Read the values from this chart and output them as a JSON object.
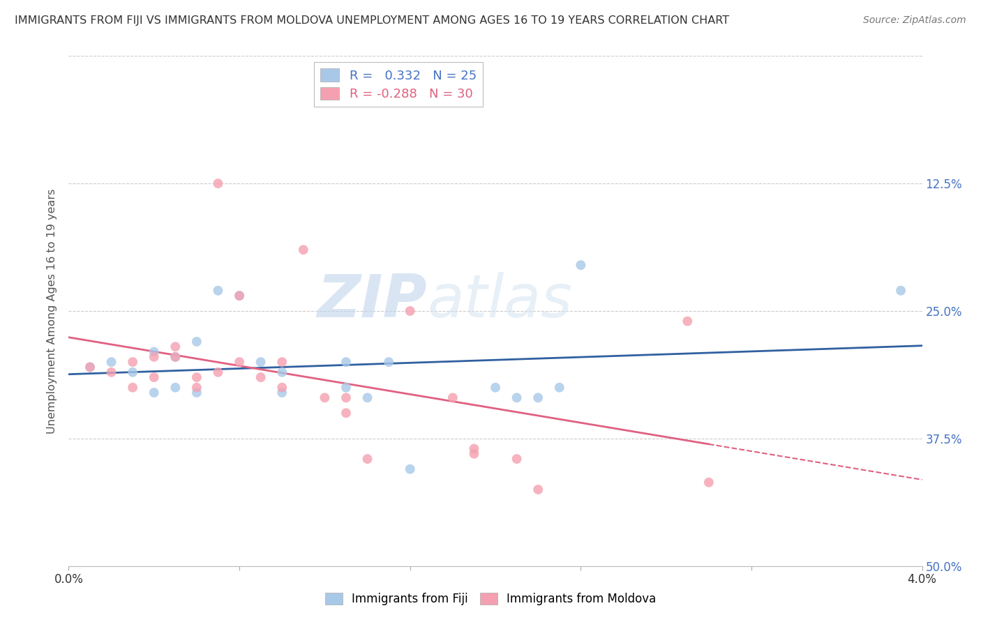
{
  "title": "IMMIGRANTS FROM FIJI VS IMMIGRANTS FROM MOLDOVA UNEMPLOYMENT AMONG AGES 16 TO 19 YEARS CORRELATION CHART",
  "source": "Source: ZipAtlas.com",
  "ylabel": "Unemployment Among Ages 16 to 19 years",
  "xlim": [
    0.0,
    0.04
  ],
  "ylim": [
    0.0,
    0.5
  ],
  "xticks": [
    0.0,
    0.008,
    0.016,
    0.024,
    0.032,
    0.04
  ],
  "yticks": [
    0.0,
    0.125,
    0.25,
    0.375,
    0.5
  ],
  "ytick_labels_right": [
    "50.0%",
    "37.5%",
    "25.0%",
    "12.5%",
    ""
  ],
  "xtick_labels": [
    "0.0%",
    "",
    "",
    "",
    "",
    "4.0%"
  ],
  "fiji_R": 0.332,
  "fiji_N": 25,
  "moldova_R": -0.288,
  "moldova_N": 30,
  "fiji_color": "#a8c8e8",
  "moldova_color": "#f4a0b0",
  "fiji_line_color": "#3060a0",
  "moldova_line_color": "#e06080",
  "watermark_color": "#d0dff0",
  "fiji_x": [
    0.001,
    0.002,
    0.003,
    0.004,
    0.004,
    0.005,
    0.005,
    0.006,
    0.006,
    0.007,
    0.008,
    0.009,
    0.01,
    0.01,
    0.013,
    0.013,
    0.014,
    0.015,
    0.016,
    0.02,
    0.021,
    0.022,
    0.023,
    0.024,
    0.039
  ],
  "fiji_y": [
    0.195,
    0.2,
    0.19,
    0.21,
    0.17,
    0.205,
    0.175,
    0.22,
    0.17,
    0.27,
    0.265,
    0.2,
    0.19,
    0.17,
    0.2,
    0.175,
    0.165,
    0.2,
    0.095,
    0.175,
    0.165,
    0.165,
    0.175,
    0.295,
    0.27
  ],
  "moldova_x": [
    0.001,
    0.002,
    0.003,
    0.003,
    0.004,
    0.004,
    0.005,
    0.005,
    0.006,
    0.006,
    0.007,
    0.007,
    0.008,
    0.008,
    0.009,
    0.01,
    0.01,
    0.011,
    0.012,
    0.013,
    0.013,
    0.014,
    0.016,
    0.018,
    0.019,
    0.019,
    0.021,
    0.022,
    0.029,
    0.03
  ],
  "moldova_y": [
    0.195,
    0.19,
    0.2,
    0.175,
    0.205,
    0.185,
    0.215,
    0.205,
    0.185,
    0.175,
    0.19,
    0.375,
    0.265,
    0.2,
    0.185,
    0.2,
    0.175,
    0.31,
    0.165,
    0.165,
    0.15,
    0.105,
    0.25,
    0.165,
    0.115,
    0.11,
    0.105,
    0.075,
    0.24,
    0.082
  ],
  "fiji_size": 100,
  "moldova_size": 100,
  "background_color": "#ffffff",
  "grid_color": "#cccccc",
  "label_color": "#4472c4"
}
